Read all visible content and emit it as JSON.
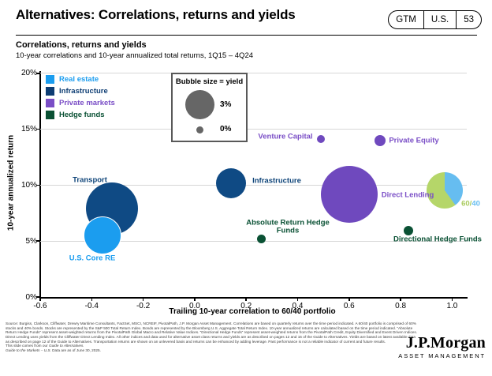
{
  "header": {
    "title": "Alternatives: Correlations, returns and yields",
    "badge": {
      "gtm": "GTM",
      "region": "U.S.",
      "page": "53"
    }
  },
  "chart_header": {
    "title": "Correlations, returns and yields",
    "subtitle": "10-year correlations and 10-year annualized total returns, 1Q15 – 4Q24"
  },
  "legend": {
    "items": [
      {
        "id": "real_estate",
        "label": "Real estate",
        "color": "#1b9def"
      },
      {
        "id": "infrastructure",
        "label": "Infrastructure",
        "color": "#0d3d73"
      },
      {
        "id": "private_markets",
        "label": "Private markets",
        "color": "#7a4ec6"
      },
      {
        "id": "hedge_funds",
        "label": "Hedge funds",
        "color": "#0a5134"
      }
    ]
  },
  "bubble_legend": {
    "title": "Bubble size = yield",
    "big_label": "3%",
    "small_label": "0%",
    "circle_color": "#666666"
  },
  "chart_data": {
    "type": "scatter",
    "title": "Correlations, returns and yields",
    "xlabel": "Trailing 10-year correlation to 60/40 portfolio",
    "ylabel": "10-year annualized return",
    "xlim": [
      -0.6,
      1.1
    ],
    "ylim": [
      0,
      20
    ],
    "x_ticks": [
      "-0.6",
      "-0.4",
      "-0.2",
      "0.0",
      "0.2",
      "0.4",
      "0.6",
      "0.8",
      "1.0"
    ],
    "x_tick_values": [
      -0.6,
      -0.4,
      -0.2,
      0.0,
      0.2,
      0.4,
      0.6,
      0.8,
      1.0
    ],
    "y_ticks": [
      "20%",
      "15%",
      "10%",
      "5%",
      "0%"
    ],
    "y_tick_values": [
      20,
      15,
      10,
      5,
      0
    ],
    "gridline_values": [
      20,
      15,
      10,
      5
    ],
    "note": "bubble size encodes yield; legend shows 0% to 3%",
    "points": [
      {
        "id": "transport",
        "label": "Transport",
        "group": "infrastructure",
        "x": -0.32,
        "y": 7.9,
        "radius_px": 33,
        "color": "#0f4a84",
        "label_color": "#0d4378"
      },
      {
        "id": "us_core_re",
        "label": "U.S. Core RE",
        "group": "real_estate",
        "x": -0.36,
        "y": 5.6,
        "radius_px": 23,
        "color": "#1b9def",
        "label_color": "#1b9def",
        "outline": "#ffffff"
      },
      {
        "id": "infrastructure",
        "label": "Infrastructure",
        "group": "infrastructure",
        "x": 0.14,
        "y": 10.2,
        "radius_px": 19,
        "color": "#0f4a84",
        "label_color": "#0d4378"
      },
      {
        "id": "absolute_return_hf",
        "label": "Absolute Return Hedge Funds",
        "group": "hedge_funds",
        "x": 0.26,
        "y": 5.2,
        "radius_px": 5.5,
        "color": "#0a5134",
        "label_color": "#0a5134"
      },
      {
        "id": "venture_capital",
        "label": "Venture Capital",
        "group": "private_markets",
        "x": 0.49,
        "y": 14.1,
        "radius_px": 5,
        "color": "#6f49be",
        "label_color": "#7a4ec6"
      },
      {
        "id": "private_equity",
        "label": "Private Equity",
        "group": "private_markets",
        "x": 0.72,
        "y": 14.0,
        "radius_px": 7,
        "color": "#6f49be",
        "label_color": "#7a4ec6"
      },
      {
        "id": "direct_lending",
        "label": "Direct Lending",
        "group": "private_markets",
        "x": 0.6,
        "y": 9.2,
        "radius_px": 36,
        "color": "#6f49be",
        "label_color": "#7a4ec6"
      },
      {
        "id": "directional_hf",
        "label": "Directional Hedge Funds",
        "group": "hedge_funds",
        "x": 0.83,
        "y": 5.9,
        "radius_px": 6,
        "color": "#0a5134",
        "label_color": "#0a5134"
      },
      {
        "id": "p6040",
        "label": "60/40",
        "group": "portfolio",
        "x": 0.97,
        "y": 9.5,
        "radius_px": 23,
        "pie": {
          "colors": [
            "#66bdf0",
            "#b5d669"
          ],
          "split_pct": 40
        },
        "label_parts": [
          {
            "text": "60/",
            "color": "#aacb5e"
          },
          {
            "text": "40",
            "color": "#66bdf0"
          }
        ]
      }
    ]
  },
  "footnote": {
    "para": "Source: Burgiss, Clarkson, Cliffwater, Drewry Maritime Consultants, FactSet, MSCI, NCREIF, PivotalPath, J.P. Morgan Asset Management. Correlations are based on quarterly returns over the time period indicated. A 60/40 portfolio is comprised of 60% stocks and 40% bonds. Stocks are represented by the S&P 500 Total Return Index. Bonds are represented by the Bloomberg U.S. Aggregate Total Return Index. 10-year annualized returns are calculated based on the time period indicated. “Absolute Return Hedge Funds” represent asset-weighted returns from the PivotalPath Global Macro and Relative Value Indices. “Directional Hedge Funds” represent asset-weighted returns from the PivotalPath Credit, Equity Diversified and Event Driven Indices. Direct Lending uses yields from the Cliffwater Direct Lending Index. All other indices and data used for alternative asset class returns and yields are as described on pages 12 and 16 of the Guide to Alternatives. Yields are based on latest available data as described on page 12 of the Guide to Alternatives. Transportation returns are shown on an unlevered basis and returns can be enhanced by adding leverage. Past performance is not a reliable indicator of current and future results.",
    "line2_prefix": "This slide comes from our ",
    "line2_italic": "Guide to Alternatives.",
    "line3_italic": "Guide to the Markets – U.S.",
    "line3_normal": " Data are as of June 30, 2025."
  },
  "logo": {
    "name": "J.P.Morgan",
    "sub": "ASSET MANAGEMENT"
  }
}
